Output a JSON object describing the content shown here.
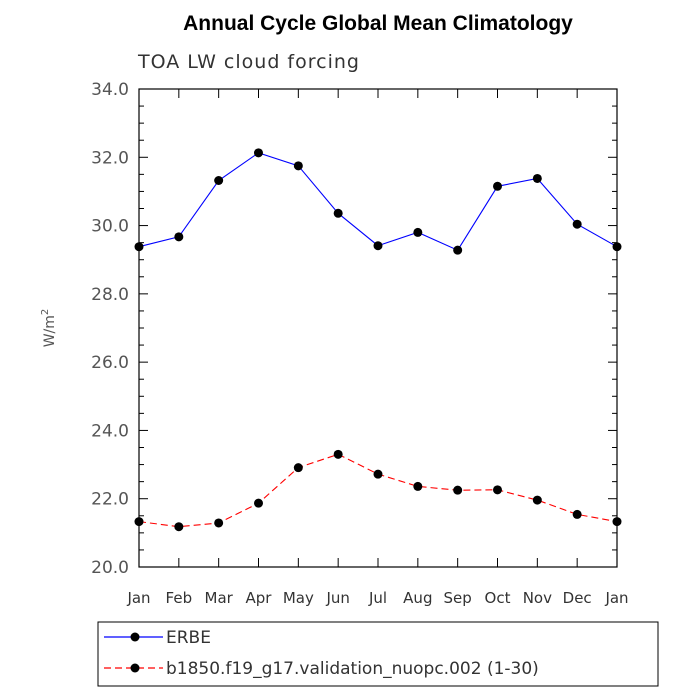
{
  "chart_data": {
    "type": "line",
    "title": "Annual Cycle Global Mean Climatology",
    "subtitle": "TOA LW cloud forcing",
    "ylabel": "W/m",
    "ylabel_sup": "2",
    "xlabel": "",
    "categories": [
      "Jan",
      "Feb",
      "Mar",
      "Apr",
      "May",
      "Jun",
      "Jul",
      "Aug",
      "Sep",
      "Oct",
      "Nov",
      "Dec",
      "Jan"
    ],
    "ylim": [
      20.0,
      34.0
    ],
    "yticks": [
      "20.0",
      "22.0",
      "24.0",
      "26.0",
      "28.0",
      "30.0",
      "32.0",
      "34.0"
    ],
    "grid": false,
    "legend_position": "bottom",
    "series": [
      {
        "name": "ERBE",
        "color": "#0000ff",
        "style": "solid",
        "values": [
          29.38,
          29.67,
          31.32,
          32.13,
          31.75,
          30.36,
          29.41,
          29.8,
          29.28,
          31.15,
          31.38,
          30.04,
          29.38
        ]
      },
      {
        "name": "b1850.f19_g17.validation_nuopc.002 (1-30)",
        "color": "#ff0000",
        "style": "dashed",
        "values": [
          21.33,
          21.18,
          21.29,
          21.87,
          22.91,
          23.3,
          22.72,
          22.36,
          22.25,
          22.26,
          21.96,
          21.54,
          21.33
        ]
      }
    ]
  }
}
